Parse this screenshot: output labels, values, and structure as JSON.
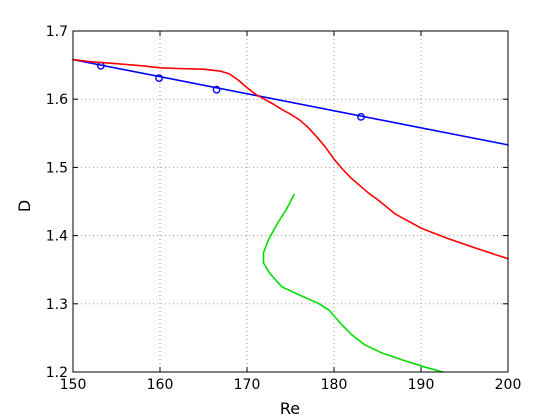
{
  "chart_data": {
    "type": "line",
    "xlabel": "Re",
    "ylabel": "D",
    "xlim": [
      150,
      200
    ],
    "ylim": [
      1.2,
      1.7
    ],
    "xticks": [
      150,
      160,
      170,
      180,
      190,
      200
    ],
    "yticks": [
      1.2,
      1.3,
      1.4,
      1.5,
      1.6,
      1.7
    ],
    "xtick_labels": [
      "150",
      "160",
      "170",
      "180",
      "190",
      "200"
    ],
    "ytick_labels": [
      "1.2",
      "1.3",
      "1.4",
      "1.5",
      "1.6",
      "1.7"
    ],
    "grid": true,
    "series": [
      {
        "color": "#0000ff",
        "x": [
          150,
          200
        ],
        "y": [
          1.658,
          1.533
        ],
        "markers": {
          "shape": "circle",
          "x": [
            153.2,
            159.9,
            166.5,
            183.1
          ],
          "y": [
            1.649,
            1.631,
            1.614,
            1.574
          ]
        }
      },
      {
        "color": "#ff0000",
        "x": [
          150,
          152,
          155,
          158,
          160,
          162,
          165,
          167,
          168,
          169,
          170,
          171,
          172,
          173,
          174,
          175,
          176,
          177,
          178,
          179,
          180,
          181,
          182,
          183,
          184,
          185,
          187,
          190,
          193,
          196,
          200
        ],
        "y": [
          1.658,
          1.655,
          1.652,
          1.649,
          1.646,
          1.645,
          1.644,
          1.641,
          1.637,
          1.628,
          1.617,
          1.607,
          1.6,
          1.593,
          1.585,
          1.578,
          1.57,
          1.559,
          1.545,
          1.53,
          1.512,
          1.497,
          1.484,
          1.473,
          1.462,
          1.453,
          1.432,
          1.411,
          1.396,
          1.383,
          1.366
        ]
      },
      {
        "color": "#00dd00",
        "x": [
          175.4,
          174.6,
          173.6,
          172.5,
          171.9,
          171.9,
          172.6,
          174.0,
          176.0,
          178.3,
          179.5,
          180.7,
          182.0,
          183.5,
          185.5,
          188.0,
          190.5,
          192.5
        ],
        "y": [
          1.46,
          1.44,
          1.42,
          1.395,
          1.375,
          1.36,
          1.345,
          1.325,
          1.313,
          1.3,
          1.29,
          1.272,
          1.255,
          1.24,
          1.228,
          1.217,
          1.207,
          1.2
        ]
      }
    ]
  }
}
